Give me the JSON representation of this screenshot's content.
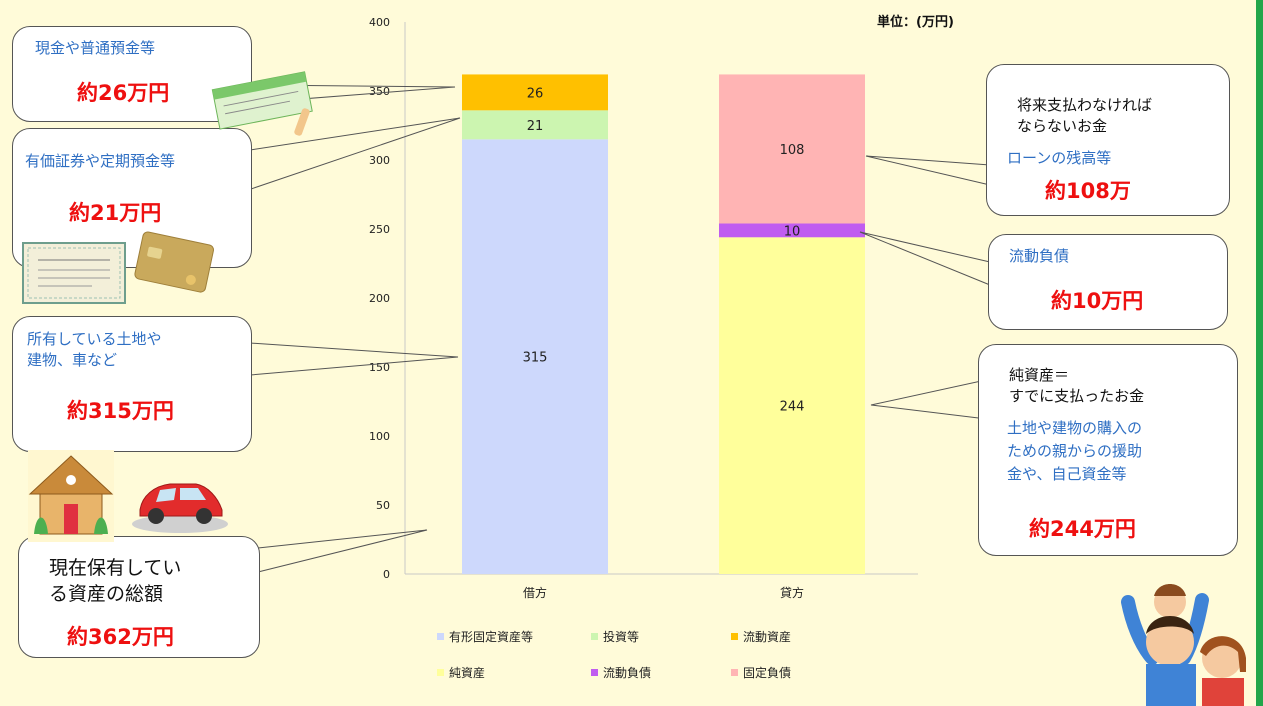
{
  "unit_label": "単位：(万円)",
  "chart_data": {
    "type": "bar",
    "stacked": true,
    "categories": [
      "借方",
      "貸方"
    ],
    "ylim": [
      0,
      400
    ],
    "yticks": [
      0,
      50,
      100,
      150,
      200,
      250,
      300,
      350,
      400
    ],
    "grid": false,
    "legend_position": "bottom",
    "series": [
      {
        "name": "有形固定資産等",
        "values": [
          315,
          0
        ],
        "color": "#cdd8fc"
      },
      {
        "name": "投資等",
        "values": [
          21,
          0
        ],
        "color": "#ccf5b0"
      },
      {
        "name": "流動資産",
        "values": [
          26,
          0
        ],
        "color": "#ffc000"
      },
      {
        "name": "純資産",
        "values": [
          0,
          244
        ],
        "color": "#ffff9b"
      },
      {
        "name": "流動負債",
        "values": [
          0,
          10
        ],
        "color": "#c05cf0"
      },
      {
        "name": "固定負債",
        "values": [
          0,
          108
        ],
        "color": "#ffb4b4"
      }
    ]
  },
  "callouts": {
    "cash": {
      "text": "現金や普通預金等",
      "amount": "約26万円"
    },
    "securities": {
      "text": "有価証券や定期預金等",
      "amount": "約21万円"
    },
    "land": {
      "line1": "所有している土地や",
      "line2": "建物、車など",
      "amount": "約315万円"
    },
    "total": {
      "line1": "現在保有してい",
      "line2": "る資産の総額",
      "amount": "約362万円"
    },
    "loan": {
      "line1": "将来支払わなければ",
      "line2": "ならないお金",
      "line3": "ローンの残高等",
      "amount": "約108万"
    },
    "current_liab": {
      "text": "流動負債",
      "amount": "約10万円"
    },
    "net_assets": {
      "line1": "純資産＝",
      "line2": "すでに支払ったお金",
      "line3": "土地や建物の購入の",
      "line4": "ための親からの援助",
      "line5": "金や、自己資金等",
      "amount": "約244万円"
    }
  },
  "illustrations": [
    "bankbook-icon",
    "stock-certificate-icon",
    "credit-card-icon",
    "house-icon",
    "car-icon",
    "family-icon"
  ]
}
